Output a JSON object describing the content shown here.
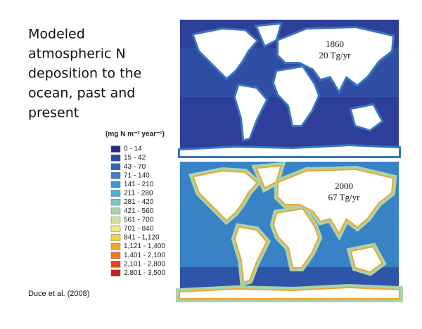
{
  "slide": {
    "title_lines": [
      "Modeled",
      "atmospheric N",
      "deposition to the",
      "ocean, past and",
      "present"
    ],
    "legend": {
      "title": "(mg N m⁻² year⁻¹)",
      "items": [
        {
          "label": "0 - 14",
          "color": "#2b2c8a"
        },
        {
          "label": "15 - 42",
          "color": "#2e4ea3"
        },
        {
          "label": "43 - 70",
          "color": "#3566b5"
        },
        {
          "label": "71 - 140",
          "color": "#3a80c2"
        },
        {
          "label": "141 - 210",
          "color": "#3e98cf"
        },
        {
          "label": "211 - 280",
          "color": "#4cb0d9"
        },
        {
          "label": "281 - 420",
          "color": "#7cc3c4"
        },
        {
          "label": "421 - 560",
          "color": "#a9d2a9"
        },
        {
          "label": "561 - 700",
          "color": "#d3e09a"
        },
        {
          "label": "701 - 840",
          "color": "#f1e680"
        },
        {
          "label": "841 - 1,120",
          "color": "#f5d040"
        },
        {
          "label": "1,121 - 1,400",
          "color": "#f2a52c"
        },
        {
          "label": "1,401 - 2,100",
          "color": "#ec7a26"
        },
        {
          "label": "2,101 - 2,800",
          "color": "#e04a22"
        },
        {
          "label": "2,801 - 3,500",
          "color": "#c8221f"
        }
      ]
    },
    "maps": [
      {
        "year": "1860",
        "amount": "20 Tg/yr"
      },
      {
        "year": "2000",
        "amount": "67 Tg/yr"
      }
    ],
    "citation": "Duce et al. (2008)"
  }
}
